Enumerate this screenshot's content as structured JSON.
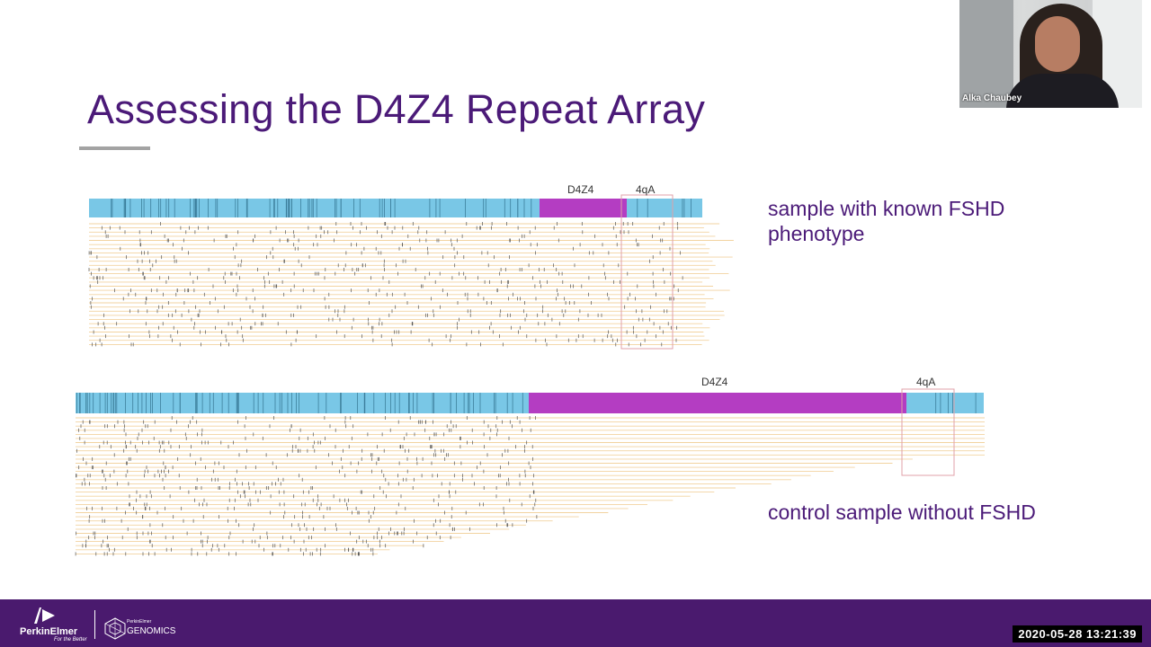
{
  "slide": {
    "title": "Assessing the D4Z4 Repeat Array"
  },
  "panels": {
    "top": {
      "label_d4z4": "D4Z4",
      "label_4qa": "4qA",
      "caption_line1": "sample with known FSHD",
      "caption_line2": "phenotype"
    },
    "bottom": {
      "label_d4z4": "D4Z4",
      "label_4qa": "4qA",
      "caption": "control sample without FSHD"
    }
  },
  "colors": {
    "title": "#4b1a78",
    "reference_bar": "#79c7e6",
    "repeat_region": "#b43dc2",
    "read_line": "#f2d3a0",
    "highlight_box": "#e0a0a8",
    "footer": "#4a1a6e"
  },
  "webcam": {
    "speaker_name": "Alka Chaubey"
  },
  "footer": {
    "brand": "PerkinElmer",
    "tagline": "For the Better",
    "sub_brand_small": "PerkinElmer",
    "sub_brand": "GENOMICS",
    "timestamp": "2020-05-28  13:21:39"
  }
}
